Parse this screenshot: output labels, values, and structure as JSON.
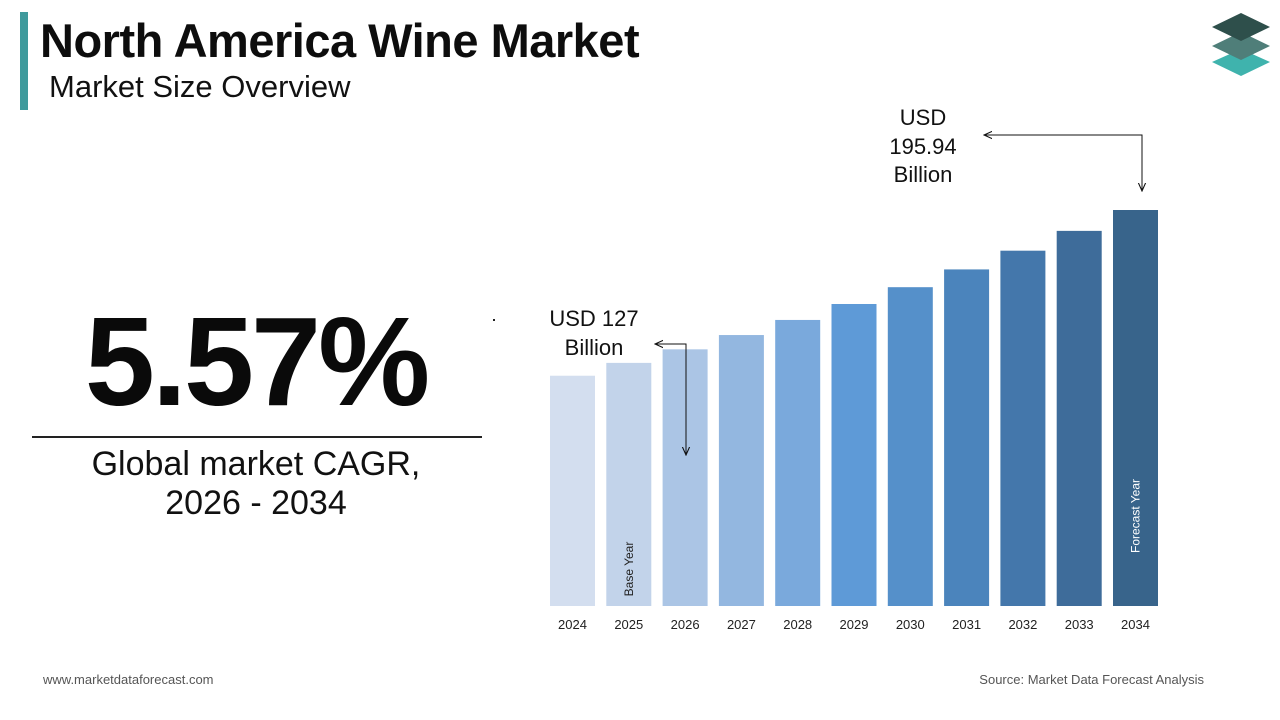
{
  "header": {
    "title": "North America Wine Market",
    "subtitle": "Market Size Overview"
  },
  "logo": {
    "icon": "stacked-layers-logo-icon"
  },
  "cagr": {
    "value": "5.57%",
    "label_line1": "Global market CAGR,",
    "label_line2": "2026 - 2034"
  },
  "callouts": {
    "start_line1": "USD 127",
    "start_line2": "Billion",
    "end_line1": "USD",
    "end_line2": "195.94",
    "end_line3": "Billion"
  },
  "footer": {
    "website": "www.marketdataforecast.com",
    "source": "Source: Market Data Forecast Analysis"
  },
  "chart_data": {
    "type": "bar",
    "categories": [
      "2024",
      "2025",
      "2026",
      "2027",
      "2028",
      "2029",
      "2030",
      "2031",
      "2032",
      "2033",
      "2034"
    ],
    "values": [
      113.94,
      120.29,
      127,
      134.07,
      141.54,
      149.43,
      157.75,
      166.54,
      175.81,
      185.61,
      195.94
    ],
    "bar_labels": {
      "2025": "Base Year",
      "2034": "Forecast Year"
    },
    "colors": [
      "#d3deef",
      "#c2d3ea",
      "#abc5e5",
      "#93b7e0",
      "#7aa9dc",
      "#5e9ad7",
      "#5590ca",
      "#4b84bc",
      "#4477ab",
      "#3e6c9a",
      "#38648b"
    ],
    "xlabel": "",
    "ylabel": "",
    "grid": false,
    "legend": "none"
  }
}
